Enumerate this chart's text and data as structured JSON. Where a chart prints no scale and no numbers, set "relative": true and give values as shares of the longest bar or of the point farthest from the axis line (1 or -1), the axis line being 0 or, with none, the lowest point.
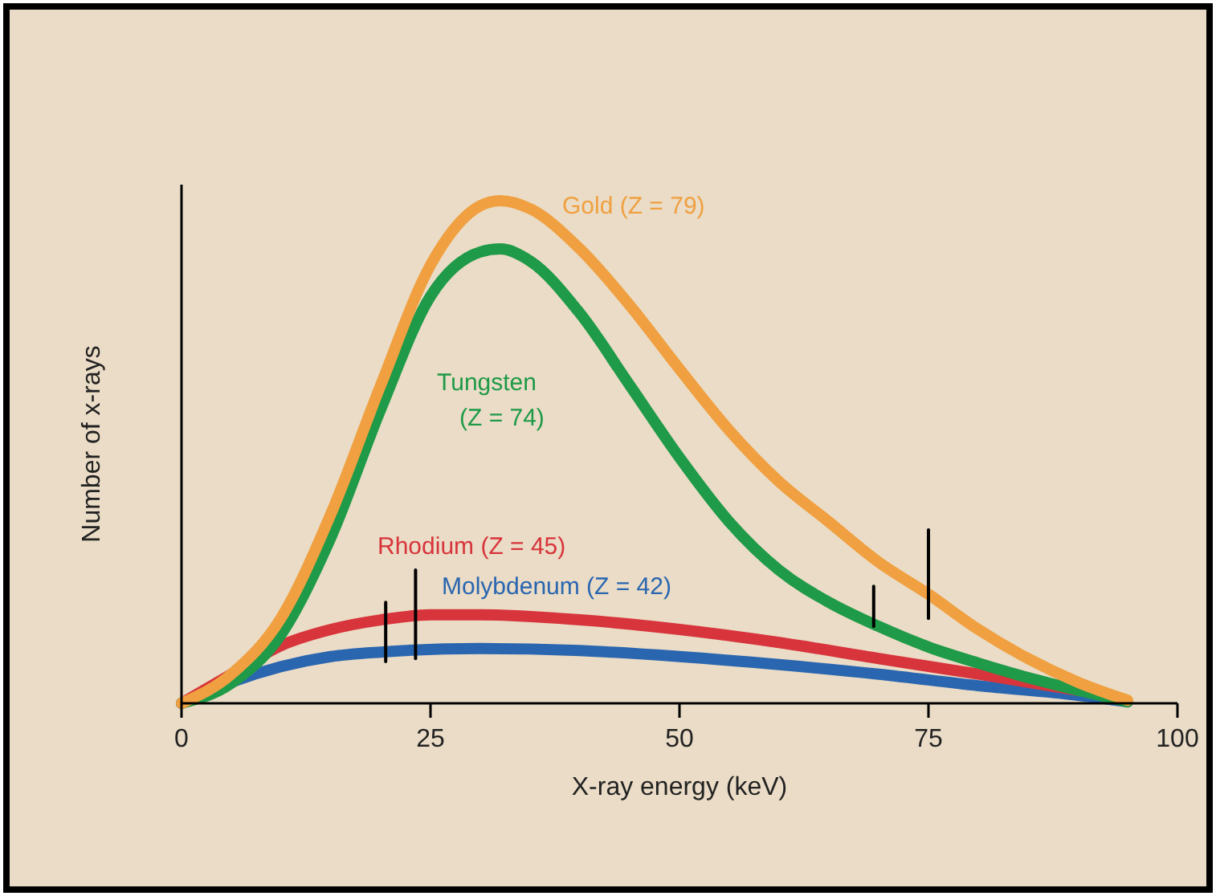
{
  "chart_data": {
    "type": "line",
    "relative": true,
    "xlabel": "X-ray energy (keV)",
    "ylabel": "Number of x-rays",
    "xlim": [
      0,
      100
    ],
    "xticks": [
      0,
      25,
      50,
      75,
      100
    ],
    "grid": false,
    "legend": false,
    "marker": "none",
    "line_style": "solid",
    "series": [
      {
        "name": "Gold (Z = 79)",
        "color": "#f0a040",
        "x": [
          0,
          5,
          10,
          15,
          20,
          25,
          30,
          32,
          35,
          40,
          45,
          50,
          55,
          60,
          65,
          70,
          75,
          80,
          85,
          90,
          95
        ],
        "values": [
          0,
          0.058,
          0.17,
          0.377,
          0.633,
          0.872,
          0.99,
          1,
          0.984,
          0.904,
          0.792,
          0.665,
          0.543,
          0.441,
          0.361,
          0.281,
          0.217,
          0.147,
          0.089,
          0.042,
          0.006
        ]
      },
      {
        "name": "Tungsten (Z = 74)",
        "color": "#1f9a48",
        "x": [
          0,
          5,
          10,
          15,
          20,
          25,
          30,
          32,
          35,
          40,
          45,
          50,
          55,
          60,
          65,
          70,
          75,
          80,
          85,
          90,
          95
        ],
        "values": [
          0,
          0.04,
          0.137,
          0.33,
          0.585,
          0.81,
          0.898,
          0.904,
          0.88,
          0.776,
          0.633,
          0.489,
          0.361,
          0.265,
          0.201,
          0.153,
          0.112,
          0.08,
          0.051,
          0.026,
          0.003
        ]
      },
      {
        "name": "Rhodium (Z = 45)",
        "color": "#d8343c",
        "x": [
          0,
          5,
          10,
          15,
          20,
          25,
          30,
          40,
          50,
          60,
          70,
          80,
          90
        ],
        "values": [
          0,
          0.058,
          0.115,
          0.147,
          0.166,
          0.176,
          0.176,
          0.166,
          0.147,
          0.121,
          0.089,
          0.058,
          0.026
        ]
      },
      {
        "name": "Molybdenum (Z = 42)",
        "color": "#2a66b0",
        "x": [
          0,
          5,
          10,
          15,
          20,
          30,
          40,
          50,
          60,
          70,
          80,
          90,
          95
        ],
        "values": [
          0,
          0.042,
          0.073,
          0.093,
          0.102,
          0.109,
          0.105,
          0.093,
          0.077,
          0.058,
          0.035,
          0.016,
          0.003
        ]
      },
      {
        "type": "line",
        "color": "#000000",
        "x": [
          20.5,
          20.5
        ],
        "values": [
          0.083,
          0.201
        ]
      },
      {
        "type": "line",
        "color": "#000000",
        "x": [
          23.5,
          23.5
        ],
        "values": [
          0.089,
          0.265
        ]
      },
      {
        "type": "line",
        "color": "#000000",
        "x": [
          69.5,
          69.5
        ],
        "values": [
          0.153,
          0.233
        ]
      },
      {
        "type": "line",
        "color": "#000000",
        "x": [
          75,
          75
        ],
        "values": [
          0.169,
          0.345
        ]
      }
    ]
  }
}
